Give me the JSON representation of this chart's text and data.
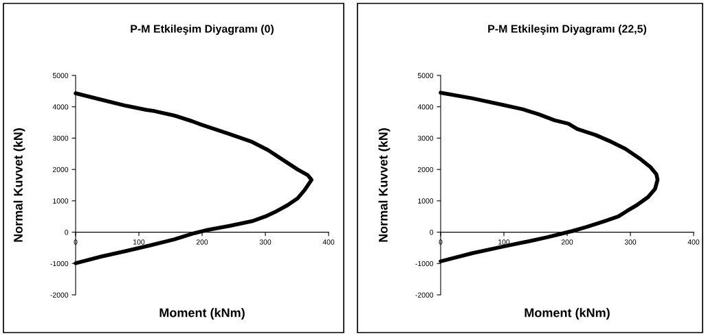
{
  "chart_data": [
    {
      "type": "line",
      "title": "P-M Etkileşim Diyagramı (0)",
      "xlabel": "Moment (kNm)",
      "ylabel": "Normal Kuvvet (kN)",
      "x": [
        0,
        40,
        80,
        112,
        125,
        156,
        184,
        199,
        243,
        279,
        304,
        329,
        351,
        367,
        373,
        362,
        351,
        335,
        315,
        300,
        279,
        243,
        206,
        188,
        156,
        116,
        80,
        40,
        0
      ],
      "values": [
        4430,
        4230,
        4030,
        3900,
        3860,
        3720,
        3540,
        3430,
        3130,
        2880,
        2620,
        2290,
        2000,
        1820,
        1670,
        1340,
        1080,
        860,
        640,
        500,
        350,
        200,
        60,
        -30,
        -230,
        -430,
        -600,
        -780,
        -990
      ],
      "color": "#000000",
      "marker": "none",
      "line_style": "solid",
      "grid": false,
      "xlim": [
        0,
        400
      ],
      "xticks": [
        0,
        100,
        200,
        300,
        400
      ],
      "ylim": [
        -2000,
        5000
      ],
      "yticks": [
        -2000,
        -1000,
        0,
        1000,
        2000,
        3000,
        4000,
        5000
      ]
    },
    {
      "type": "line",
      "title": "P-M Etkileşim Diyagramı (22,5)",
      "xlabel": "Moment (kNm)",
      "ylabel": "Normal Kuvvet (kN)",
      "x": [
        0,
        50,
        101,
        130,
        155,
        180,
        202,
        216,
        245,
        270,
        292,
        314,
        332,
        341,
        343,
        339,
        328,
        310,
        295,
        281,
        259,
        231,
        209,
        187,
        169,
        144,
        101,
        50,
        0
      ],
      "values": [
        4450,
        4270,
        4050,
        3920,
        3760,
        3570,
        3460,
        3290,
        3100,
        2880,
        2660,
        2360,
        2070,
        1850,
        1670,
        1380,
        1120,
        860,
        680,
        500,
        350,
        170,
        40,
        -70,
        -160,
        -270,
        -450,
        -670,
        -930
      ],
      "color": "#000000",
      "marker": "none",
      "line_style": "solid",
      "grid": false,
      "xlim": [
        0,
        400
      ],
      "xticks": [
        0,
        100,
        200,
        300,
        400
      ],
      "ylim": [
        -2000,
        5000
      ],
      "yticks": [
        -2000,
        -1000,
        0,
        1000,
        2000,
        3000,
        4000,
        5000
      ]
    }
  ]
}
